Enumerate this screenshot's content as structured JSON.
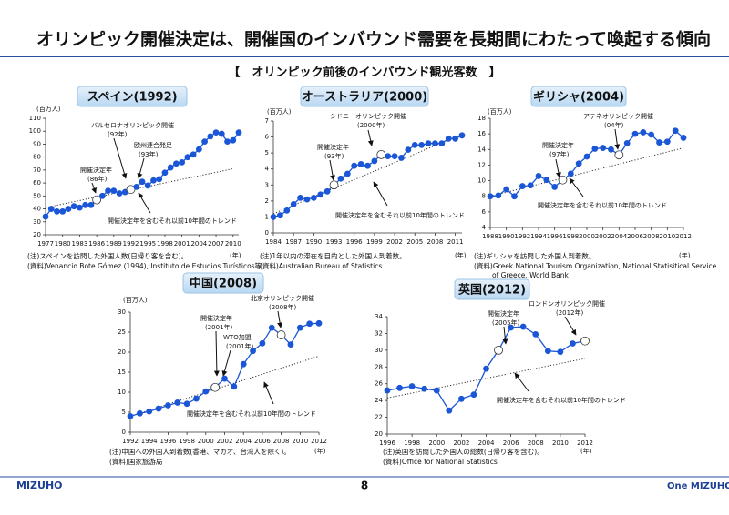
{
  "header": {
    "title": "オリンピック開催決定は、開催国のインバウンド需要を長期間にわたって喚起する傾向",
    "subtitle": "【　オリンピック前後のインバウンド観光客数　】"
  },
  "footer": {
    "logo": "MIZUHO",
    "page": "8",
    "logo_right": "One MIZUHO"
  },
  "chart_data": [
    {
      "type": "line",
      "title": "スペイン(1992)",
      "y_label": "(百万人)",
      "x_unit": "(年)",
      "color": "#1a56d6",
      "x": [
        1977,
        1978,
        1979,
        1980,
        1981,
        1982,
        1983,
        1984,
        1985,
        1986,
        1987,
        1988,
        1989,
        1990,
        1991,
        1992,
        1993,
        1994,
        1995,
        1996,
        1997,
        1998,
        1999,
        2000,
        2001,
        2002,
        2003,
        2004,
        2005,
        2006,
        2007,
        2008,
        2009,
        2010,
        2011
      ],
      "values": [
        34,
        40,
        38,
        38,
        40,
        42,
        41,
        43,
        43,
        47,
        50,
        54,
        54,
        52,
        53,
        55,
        57,
        61,
        58,
        62,
        63,
        68,
        72,
        75,
        76,
        80,
        82,
        86,
        92,
        96,
        99,
        98,
        92,
        93,
        99
      ],
      "hollow": [
        1986,
        1992
      ],
      "trend": {
        "x": [
          1977,
          2010
        ],
        "values": [
          41,
          71
        ]
      },
      "annotations": [
        "バルセロナオリンピック開催",
        "(92年)",
        "欧州連合発足",
        "(93年)",
        "開催決定年",
        "(86年)",
        "開催決定年を含むそれ以前10年間のトレンド"
      ],
      "notes": [
        "(注)スペインを訪問した外国人数(日帰り客を含む)。",
        "(資料)Venancio Bote Gómez (1994), Instituto de Estudios Turísticos等"
      ],
      "xlim": [
        1977,
        2011
      ],
      "xticks": [
        1977,
        1980,
        1983,
        1986,
        1989,
        1992,
        1995,
        1998,
        2001,
        2004,
        2007,
        2010
      ],
      "ylim": [
        20,
        110
      ],
      "yticks": [
        20,
        30,
        40,
        50,
        60,
        70,
        80,
        90,
        100,
        110
      ]
    },
    {
      "type": "line",
      "title": "オーストラリア(2000)",
      "y_label": "(百万人)",
      "x_unit": "(年)",
      "color": "#1a56d6",
      "x": [
        1984,
        1985,
        1986,
        1987,
        1988,
        1989,
        1990,
        1991,
        1992,
        1993,
        1994,
        1995,
        1996,
        1997,
        1998,
        1999,
        2000,
        2001,
        2002,
        2003,
        2004,
        2005,
        2006,
        2007,
        2008,
        2009,
        2010,
        2011,
        2012
      ],
      "values": [
        1.0,
        1.1,
        1.4,
        1.8,
        2.2,
        2.1,
        2.2,
        2.4,
        2.6,
        3.0,
        3.4,
        3.7,
        4.2,
        4.3,
        4.2,
        4.5,
        4.9,
        4.8,
        4.8,
        4.7,
        5.2,
        5.5,
        5.5,
        5.6,
        5.6,
        5.6,
        5.9,
        5.9,
        6.1
      ],
      "hollow": [
        1993,
        2000
      ],
      "trend": {
        "x": [
          1984,
          2011
        ],
        "values": [
          1.2,
          6.0
        ]
      },
      "annotations": [
        "シドニーオリンピック開催",
        "(2000年)",
        "開催決定年",
        "(93年)",
        "開催決定年を含むそれ以前10年間のトレンド"
      ],
      "notes": [
        "(注)1年以内の滞在を目的とした外国人到着数。",
        "(資料)Australian Bureau of Statistics"
      ],
      "xlim": [
        1984,
        2012
      ],
      "xticks": [
        1984,
        1987,
        1990,
        1993,
        1996,
        1999,
        2002,
        2005,
        2008,
        2011
      ],
      "ylim": [
        0,
        7
      ],
      "yticks": [
        0,
        1,
        2,
        3,
        4,
        5,
        6,
        7
      ]
    },
    {
      "type": "line",
      "title": "ギリシャ(2004)",
      "y_label": "(百万人)",
      "x_unit": "(年)",
      "color": "#1a56d6",
      "x": [
        1988,
        1989,
        1990,
        1991,
        1992,
        1993,
        1994,
        1995,
        1996,
        1997,
        1998,
        1999,
        2000,
        2001,
        2002,
        2003,
        2004,
        2005,
        2006,
        2007,
        2008,
        2009,
        2010,
        2011,
        2012
      ],
      "values": [
        8.0,
        8.1,
        8.9,
        8.0,
        9.3,
        9.4,
        10.6,
        10.1,
        9.2,
        10.1,
        10.9,
        12.2,
        13.1,
        14.1,
        14.2,
        14.0,
        13.3,
        14.8,
        16.0,
        16.2,
        15.9,
        14.9,
        15.0,
        16.4,
        15.5
      ],
      "hollow": [
        1997,
        2004
      ],
      "trend": {
        "x": [
          1988,
          2012
        ],
        "values": [
          8.0,
          14.2
        ]
      },
      "annotations": [
        "アテネオリンピック開催",
        "(04年)",
        "開催決定年",
        "(97年)",
        "開催決定年を含むそれ以前10年間のトレンド"
      ],
      "notes": [
        "(注)ギリシャを訪問した外国人到着数。",
        "(資料)Greek National Tourism Organization, National Statisitical Service",
        "of Greece, World Bank"
      ],
      "xlim": [
        1988,
        2012
      ],
      "xticks": [
        1988,
        1990,
        1992,
        1994,
        1996,
        1998,
        2000,
        2002,
        2004,
        2006,
        2008,
        2010,
        2012
      ],
      "ylim": [
        4,
        18
      ],
      "yticks": [
        4,
        6,
        8,
        10,
        12,
        14,
        16,
        18
      ]
    },
    {
      "type": "line",
      "title": "中国(2008)",
      "y_label": "(百万人)",
      "x_unit": "(年)",
      "color": "#1a56d6",
      "x": [
        1992,
        1993,
        1994,
        1995,
        1996,
        1997,
        1998,
        1999,
        2000,
        2001,
        2002,
        2003,
        2004,
        2005,
        2006,
        2007,
        2008,
        2009,
        2010,
        2011,
        2012
      ],
      "values": [
        4.0,
        4.7,
        5.2,
        5.9,
        6.7,
        7.4,
        7.1,
        8.4,
        10.2,
        11.2,
        13.4,
        11.4,
        17.0,
        20.3,
        22.2,
        26.1,
        24.3,
        21.9,
        26.1,
        27.1,
        27.2
      ],
      "hollow": [
        2001,
        2008
      ],
      "trend": {
        "x": [
          1992,
          2012
        ],
        "values": [
          4,
          19
        ]
      },
      "annotations": [
        "北京オリンピック開催",
        "(2008年)",
        "開催決定年",
        "(2001年)",
        "WTO加盟",
        "(2001年)",
        "開催決定年を含むそれ以前10年間のトレンド"
      ],
      "notes": [
        "(注)中国への外国人到着数(香港、マカオ、台湾人を除く)。",
        "(資料)国家旅游局"
      ],
      "xlim": [
        1992,
        2012
      ],
      "xticks": [
        1992,
        1994,
        1996,
        1998,
        2000,
        2002,
        2004,
        2006,
        2008,
        2010,
        2012
      ],
      "ylim": [
        0,
        30
      ],
      "yticks": [
        0,
        5,
        10,
        15,
        20,
        25,
        30
      ]
    },
    {
      "type": "line",
      "title": "英国(2012)",
      "x_unit": "(年)",
      "color": "#1a56d6",
      "x": [
        1996,
        1997,
        1998,
        1999,
        2000,
        2001,
        2002,
        2003,
        2004,
        2005,
        2006,
        2007,
        2008,
        2009,
        2010,
        2011,
        2012
      ],
      "values": [
        25.2,
        25.5,
        25.7,
        25.4,
        25.2,
        22.8,
        24.2,
        24.7,
        27.8,
        30.0,
        32.7,
        32.8,
        31.9,
        29.9,
        29.8,
        30.8,
        31.1
      ],
      "hollow": [
        2005,
        2012
      ],
      "trend": {
        "x": [
          1996,
          2012
        ],
        "values": [
          24.3,
          29.0
        ]
      },
      "annotations": [
        "ロンドンオリンピック開催",
        "(2012年)",
        "開催決定年",
        "(2005年)",
        "開催決定年を含むそれ以前10年間のトレンド"
      ],
      "notes": [
        "(注)英国を訪問した外国人の総数(日帰り客を含む)。",
        "(資料)Office for National Statistics"
      ],
      "xlim": [
        1996,
        2012
      ],
      "xticks": [
        1996,
        1998,
        2000,
        2002,
        2004,
        2006,
        2008,
        2010,
        2012
      ],
      "ylim": [
        20,
        34
      ],
      "yticks": [
        20,
        22,
        24,
        26,
        28,
        30,
        32,
        34
      ]
    }
  ]
}
